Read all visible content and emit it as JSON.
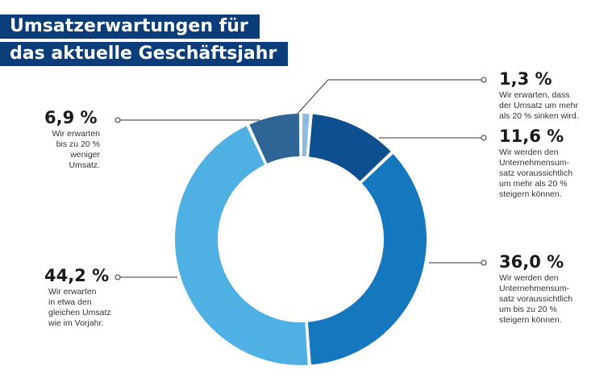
{
  "title": {
    "line1": "Umsatzerwartungen für",
    "line2": "das aktuelle Geschäftsjahr"
  },
  "colors": {
    "title_band": "#0a3d7a",
    "leader_line": "#333333"
  },
  "chart_data": {
    "type": "pie",
    "donut": true,
    "title": "Umsatzerwartungen für das aktuelle Geschäftsjahr",
    "slices": [
      {
        "value": 1.3,
        "label": "1,3 %",
        "description": "Wir erwarten, dass\nder Umsatz um mehr\nals 20 % sinken wird.",
        "color": "#8fbbe0"
      },
      {
        "value": 11.6,
        "label": "11,6 %",
        "description": "Wir werden den\nUnternehmensum-\nsatz voraussichtlich\num mehr als 20 %\nsteigern können.",
        "color": "#0e4f8f"
      },
      {
        "value": 36.0,
        "label": "36,0 %",
        "description": "Wir werden den\nUnternehmensum-\nsatz voraussichtlich\num bis zu 20 %\nsteigern können.",
        "color": "#1577bd"
      },
      {
        "value": 44.2,
        "label": "44,2 %",
        "description": "Wir erwarten\nin etwa den\ngleichen Umsatz\nwie im Vorjahr.",
        "color": "#4fb0e3"
      },
      {
        "value": 6.9,
        "label": "6,9 %",
        "description": "Wir erwarten\nbis zu 20 %\nweniger\nUmsatz.",
        "color": "#2e6596"
      }
    ]
  }
}
